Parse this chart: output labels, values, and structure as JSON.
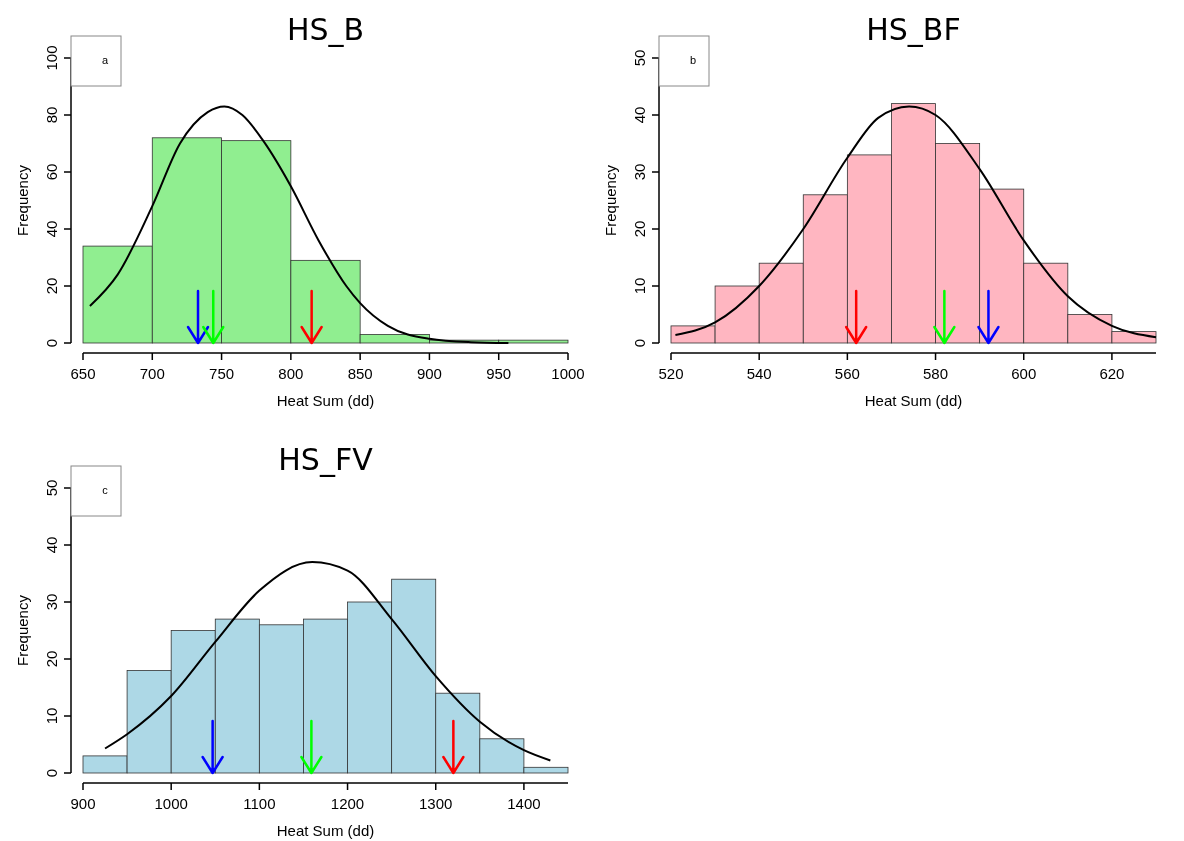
{
  "chart_data": [
    {
      "type": "histogram",
      "title": "HS_B",
      "xlabel": "Heat Sum (dd)",
      "ylabel": "Frequency",
      "annotations": [
        "a"
      ],
      "bins": [
        650,
        700,
        750,
        800,
        850,
        900,
        950,
        1000
      ],
      "values": [
        34,
        72,
        71,
        29,
        3,
        1,
        1
      ],
      "color": "#90ee90",
      "xlim": [
        650,
        1000
      ],
      "xticks": [
        650,
        700,
        750,
        800,
        850,
        900,
        950,
        1000
      ],
      "ylim": [
        0,
        100
      ],
      "yticks": [
        0,
        20,
        40,
        60,
        80,
        100
      ],
      "series": [
        {
          "type": "line",
          "color": "#000000",
          "x": [
            655,
            675,
            700,
            720,
            740,
            752,
            765,
            780,
            800,
            820,
            840,
            850,
            870,
            900,
            930,
            957
          ],
          "values": [
            13,
            24,
            48,
            70,
            81,
            83,
            80,
            71,
            55,
            36,
            20,
            14,
            6,
            1.5,
            0.3,
            0
          ]
        }
      ],
      "ref_lines": [
        {
          "axis": "x",
          "value": 733,
          "color": "#0000ff"
        },
        {
          "axis": "x",
          "value": 744,
          "color": "#00ff00"
        },
        {
          "axis": "x",
          "value": 815,
          "color": "#ff0000"
        }
      ]
    },
    {
      "type": "histogram",
      "title": "HS_BF",
      "xlabel": "Heat Sum (dd)",
      "ylabel": "Frequency",
      "annotations": [
        "b"
      ],
      "bins": [
        520,
        530,
        540,
        550,
        560,
        570,
        580,
        590,
        600,
        610,
        620,
        630
      ],
      "values": [
        3,
        10,
        14,
        26,
        33,
        42,
        35,
        27,
        14,
        5,
        2
      ],
      "color": "#ffb6c1",
      "xlim": [
        520,
        630
      ],
      "xticks": [
        520,
        540,
        560,
        580,
        600,
        620
      ],
      "ylim": [
        0,
        50
      ],
      "yticks": [
        0,
        10,
        20,
        30,
        40,
        50
      ],
      "series": [
        {
          "type": "line",
          "color": "#000000",
          "x": [
            521,
            530,
            540,
            550,
            560,
            567,
            574,
            580,
            590,
            600,
            610,
            620,
            630
          ],
          "values": [
            1.4,
            3.6,
            10,
            20,
            32.5,
            39.5,
            41.5,
            40,
            30.5,
            18,
            8.2,
            3,
            1
          ]
        }
      ],
      "ref_lines": [
        {
          "axis": "x",
          "value": 562,
          "color": "#ff0000"
        },
        {
          "axis": "x",
          "value": 582,
          "color": "#00ff00"
        },
        {
          "axis": "x",
          "value": 592,
          "color": "#0000ff"
        }
      ]
    },
    {
      "type": "histogram",
      "title": "HS_FV",
      "xlabel": "Heat Sum (dd)",
      "ylabel": "Frequency",
      "annotations": [
        "c"
      ],
      "bins": [
        900,
        950,
        1000,
        1050,
        1100,
        1150,
        1200,
        1250,
        1300,
        1350,
        1400,
        1450
      ],
      "values": [
        3,
        18,
        25,
        27,
        26,
        27,
        30,
        34,
        14,
        6,
        1
      ],
      "color": "#add8e6",
      "xlim": [
        900,
        1450
      ],
      "xticks": [
        900,
        1000,
        1100,
        1200,
        1300,
        1400
      ],
      "ylim": [
        0,
        50
      ],
      "yticks": [
        0,
        10,
        20,
        30,
        40,
        50
      ],
      "series": [
        {
          "type": "line",
          "color": "#000000",
          "x": [
            925,
            950,
            1000,
            1050,
            1100,
            1160,
            1200,
            1250,
            1300,
            1350,
            1400,
            1430
          ],
          "values": [
            4.3,
            6.8,
            13.5,
            23,
            32,
            37,
            35.5,
            27,
            17,
            9,
            4,
            2.2
          ]
        }
      ],
      "ref_lines": [
        {
          "axis": "x",
          "value": 1047,
          "color": "#0000ff"
        },
        {
          "axis": "x",
          "value": 1159,
          "color": "#00ff00"
        },
        {
          "axis": "x",
          "value": 1320,
          "color": "#ff0000"
        }
      ]
    }
  ]
}
